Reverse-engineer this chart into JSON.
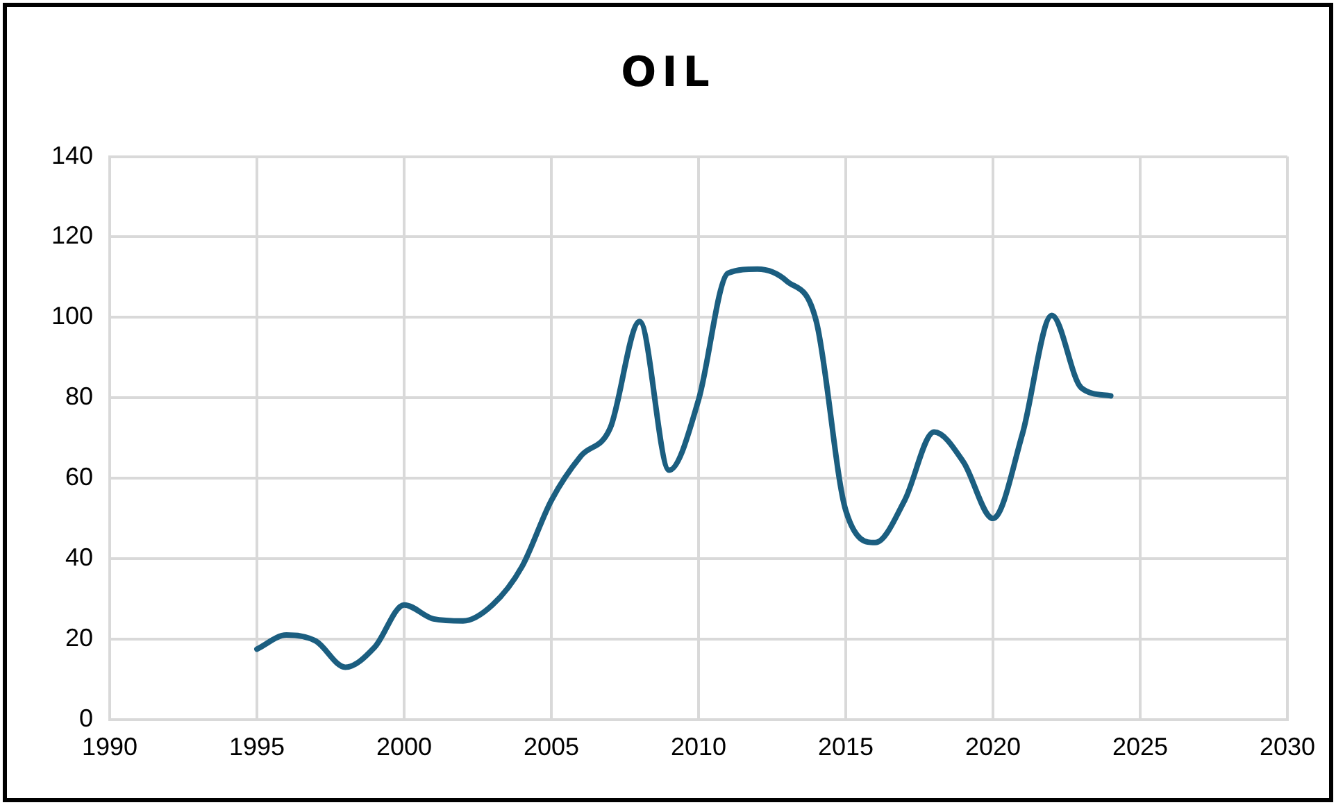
{
  "chart_data": {
    "type": "line",
    "title": "OIL",
    "x": [
      1995,
      1996,
      1997,
      1998,
      1999,
      2000,
      2001,
      2002,
      2003,
      2004,
      2005,
      2006,
      2007,
      2008,
      2009,
      2010,
      2011,
      2012,
      2013,
      2014,
      2015,
      2016,
      2017,
      2018,
      2019,
      2020,
      2021,
      2022,
      2023,
      2024
    ],
    "series": [
      {
        "color": "#1b5e80",
        "values": [
          17.5,
          21,
          19.5,
          13,
          18,
          28.5,
          25,
          24.5,
          28.5,
          38,
          54.5,
          65.5,
          72.5,
          99,
          62,
          79.5,
          111,
          112,
          109,
          99,
          52,
          44,
          54.5,
          71.5,
          64,
          50,
          71,
          100.5,
          82.5,
          80.5
        ]
      }
    ],
    "xlim": [
      1990,
      2030
    ],
    "xticks": [
      1990,
      1995,
      2000,
      2005,
      2010,
      2015,
      2020,
      2025,
      2030
    ],
    "ylim": [
      0,
      140
    ],
    "yticks": [
      0,
      20,
      40,
      60,
      80,
      100,
      120,
      140
    ],
    "grid": true,
    "legend": false,
    "marker": "none",
    "line_style": "solid"
  }
}
